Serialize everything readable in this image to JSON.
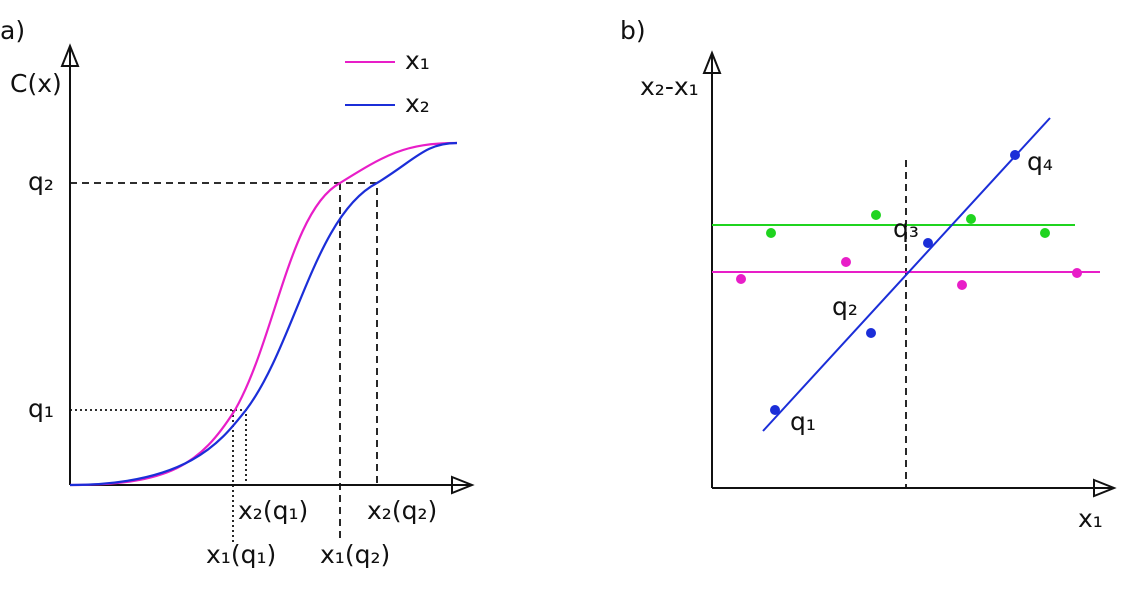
{
  "panel_a": {
    "label": "a)",
    "y_axis_label": "C(x)",
    "legend": [
      {
        "name": "x₁",
        "color": "#e81ec8"
      },
      {
        "name": "x₂",
        "color": "#1b2ed8"
      }
    ],
    "y_labels": [
      "q₂",
      "q₁"
    ],
    "x_labels": [
      "x₂(q₁)",
      "x₁(q₁)",
      "x₁(q₂)",
      "x₂(q₂)"
    ]
  },
  "panel_b": {
    "label": "b)",
    "y_axis_label": "x₂-x₁",
    "x_axis_label": "x₁",
    "point_labels": [
      "q₁",
      "q₂",
      "q₃",
      "q₄"
    ]
  }
}
